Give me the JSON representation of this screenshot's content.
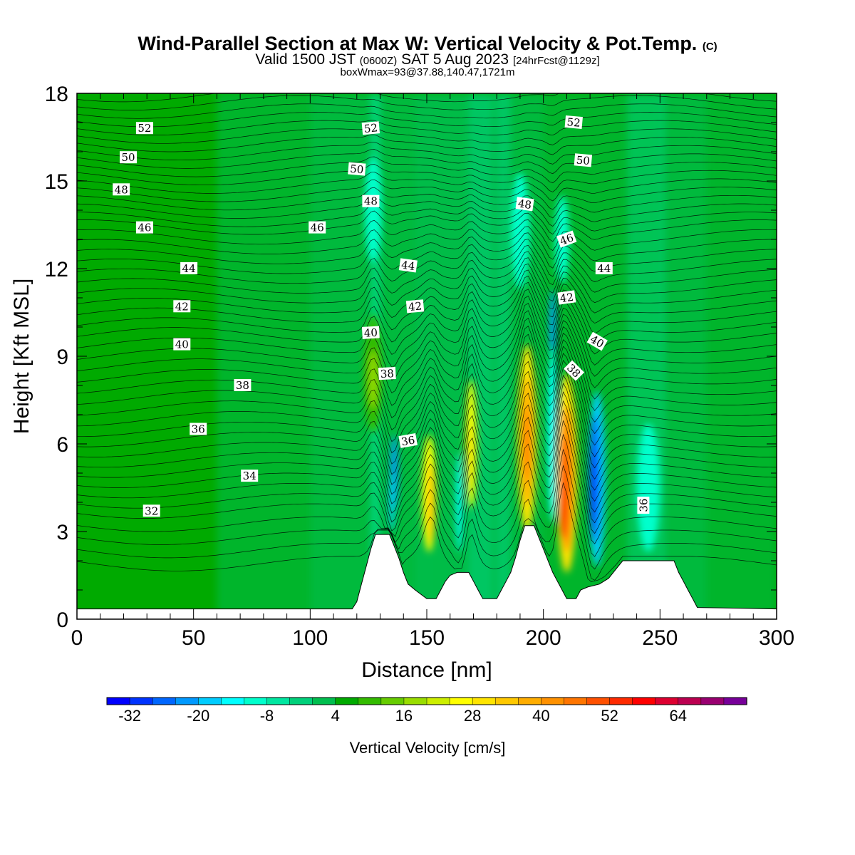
{
  "chart_data": {
    "type": "heatmap",
    "title": "Wind-Parallel Section at Max W: Vertical Velocity & Pot.Temp.",
    "title_mark": "(C)",
    "subtitle_parts": [
      "Valid 1500 JST",
      "(0600Z)",
      "SAT 5 Aug 2023",
      "[24hrFcst@1129z]"
    ],
    "subtitle2": "boxWmax=93@37.88,140.47,1721m",
    "xlabel": "Distance [nm]",
    "ylabel": "Height [Kft MSL]",
    "xlim": [
      0,
      300
    ],
    "ylim": [
      0,
      18
    ],
    "x_ticks": [
      0,
      50,
      100,
      150,
      200,
      250,
      300
    ],
    "y_ticks": [
      0,
      3,
      6,
      9,
      12,
      15,
      18
    ],
    "colorbar": {
      "label": "Vertical Velocity [cm/s]",
      "ticks": [
        -32,
        -20,
        -8,
        4,
        16,
        28,
        40,
        52,
        64
      ],
      "min": -36,
      "step": 4,
      "colors": [
        "#0000ff",
        "#0033ff",
        "#0066ff",
        "#0099ff",
        "#00ccff",
        "#00ffff",
        "#00ffcc",
        "#00e6a0",
        "#00d07a",
        "#00be4e",
        "#00aa00",
        "#33bb00",
        "#66cc00",
        "#99dd00",
        "#ccee00",
        "#ffff00",
        "#ffe400",
        "#ffc800",
        "#ffad00",
        "#ff9100",
        "#ff7500",
        "#ff5000",
        "#ff2a00",
        "#ff0000",
        "#dd0030",
        "#bb0050",
        "#990070",
        "#770099"
      ]
    },
    "terrain": [
      [
        0,
        0.35
      ],
      [
        118,
        0.35
      ],
      [
        120,
        0.6
      ],
      [
        122,
        1.2
      ],
      [
        124,
        1.8
      ],
      [
        126,
        2.4
      ],
      [
        128,
        2.9
      ],
      [
        134,
        2.9
      ],
      [
        136,
        2.5
      ],
      [
        138,
        2.1
      ],
      [
        140,
        1.6
      ],
      [
        142,
        1.2
      ],
      [
        145,
        1.0
      ],
      [
        150,
        0.7
      ],
      [
        154,
        0.7
      ],
      [
        156,
        1.0
      ],
      [
        158,
        1.3
      ],
      [
        160,
        1.5
      ],
      [
        163,
        1.6
      ],
      [
        168,
        1.6
      ],
      [
        170,
        1.3
      ],
      [
        172,
        1.0
      ],
      [
        174,
        0.7
      ],
      [
        180,
        0.7
      ],
      [
        182,
        1.0
      ],
      [
        184,
        1.3
      ],
      [
        186,
        1.6
      ],
      [
        188,
        2.1
      ],
      [
        190,
        2.7
      ],
      [
        192,
        3.2
      ],
      [
        196,
        3.2
      ],
      [
        198,
        2.8
      ],
      [
        200,
        2.4
      ],
      [
        202,
        2.0
      ],
      [
        204,
        1.6
      ],
      [
        206,
        1.3
      ],
      [
        208,
        1.0
      ],
      [
        210,
        0.7
      ],
      [
        214,
        0.7
      ],
      [
        216,
        1.0
      ],
      [
        219,
        1.1
      ],
      [
        224,
        1.2
      ],
      [
        228,
        1.4
      ],
      [
        231,
        1.7
      ],
      [
        234,
        2.0
      ],
      [
        256,
        2.0
      ],
      [
        258,
        1.6
      ],
      [
        260,
        1.3
      ],
      [
        262,
        1.0
      ],
      [
        264,
        0.7
      ],
      [
        266,
        0.4
      ],
      [
        300,
        0.35
      ]
    ],
    "theta_labels": [
      {
        "value": "52",
        "x": 29,
        "y": 16.8,
        "angle": 0
      },
      {
        "value": "50",
        "x": 22,
        "y": 15.8,
        "angle": 0
      },
      {
        "value": "48",
        "x": 19,
        "y": 14.7,
        "angle": 0
      },
      {
        "value": "46",
        "x": 29,
        "y": 13.4,
        "angle": 0
      },
      {
        "value": "44",
        "x": 48,
        "y": 12.0,
        "angle": 0
      },
      {
        "value": "42",
        "x": 45,
        "y": 10.7,
        "angle": 0
      },
      {
        "value": "40",
        "x": 45,
        "y": 9.4,
        "angle": 0
      },
      {
        "value": "38",
        "x": 71,
        "y": 8.0,
        "angle": 0
      },
      {
        "value": "36",
        "x": 52,
        "y": 6.5,
        "angle": 0
      },
      {
        "value": "34",
        "x": 74,
        "y": 4.9,
        "angle": 0
      },
      {
        "value": "32",
        "x": 32,
        "y": 3.7,
        "angle": 0
      },
      {
        "value": "52",
        "x": 126,
        "y": 16.8,
        "angle": -5
      },
      {
        "value": "50",
        "x": 120,
        "y": 15.4,
        "angle": 5
      },
      {
        "value": "48",
        "x": 126,
        "y": 14.3,
        "angle": 0
      },
      {
        "value": "46",
        "x": 103,
        "y": 13.4,
        "angle": 0
      },
      {
        "value": "44",
        "x": 142,
        "y": 12.1,
        "angle": 8
      },
      {
        "value": "42",
        "x": 145,
        "y": 10.7,
        "angle": -5
      },
      {
        "value": "40",
        "x": 126,
        "y": 9.8,
        "angle": -3
      },
      {
        "value": "38",
        "x": 133,
        "y": 8.4,
        "angle": -3
      },
      {
        "value": "36",
        "x": 142,
        "y": 6.1,
        "angle": -10
      },
      {
        "value": "52",
        "x": 213,
        "y": 17.0,
        "angle": 5
      },
      {
        "value": "50",
        "x": 217,
        "y": 15.7,
        "angle": 5
      },
      {
        "value": "48",
        "x": 192,
        "y": 14.2,
        "angle": 8
      },
      {
        "value": "46",
        "x": 210,
        "y": 13.0,
        "angle": -20
      },
      {
        "value": "44",
        "x": 226,
        "y": 12.0,
        "angle": 0
      },
      {
        "value": "42",
        "x": 210,
        "y": 11.0,
        "angle": -8
      },
      {
        "value": "40",
        "x": 223,
        "y": 9.5,
        "angle": 30
      },
      {
        "value": "38",
        "x": 213,
        "y": 8.5,
        "angle": 45
      },
      {
        "value": "36",
        "x": 243,
        "y": 3.9,
        "angle": -90
      }
    ],
    "w_cells": [
      {
        "x": 136,
        "y": 5.0,
        "rx": 1.6,
        "ry": 1.3,
        "w": -22
      },
      {
        "x": 135,
        "y": 4.0,
        "rx": 1.2,
        "ry": 1.0,
        "w": -18
      },
      {
        "x": 151,
        "y": 4.3,
        "rx": 3.0,
        "ry": 2.0,
        "w": 26
      },
      {
        "x": 152,
        "y": 4.0,
        "rx": 1.6,
        "ry": 1.4,
        "w": 32
      },
      {
        "x": 164,
        "y": 4.0,
        "rx": 1.3,
        "ry": 1.7,
        "w": -16
      },
      {
        "x": 169,
        "y": 6.0,
        "rx": 2.4,
        "ry": 2.2,
        "w": 24
      },
      {
        "x": 169,
        "y": 5.5,
        "rx": 1.2,
        "ry": 1.2,
        "w": 30
      },
      {
        "x": 193,
        "y": 6.2,
        "rx": 4.0,
        "ry": 3.2,
        "w": 28
      },
      {
        "x": 193,
        "y": 6.1,
        "rx": 2.5,
        "ry": 2.2,
        "w": 36
      },
      {
        "x": 193,
        "y": 6.0,
        "rx": 1.3,
        "ry": 1.3,
        "w": 44
      },
      {
        "x": 204,
        "y": 10.0,
        "rx": 1.4,
        "ry": 1.3,
        "w": -24
      },
      {
        "x": 204,
        "y": 6.3,
        "rx": 2.2,
        "ry": 3.0,
        "w": -14
      },
      {
        "x": 210,
        "y": 5.0,
        "rx": 4.5,
        "ry": 3.4,
        "w": 30
      },
      {
        "x": 210,
        "y": 4.8,
        "rx": 3.0,
        "ry": 2.5,
        "w": 40
      },
      {
        "x": 209,
        "y": 4.5,
        "rx": 1.8,
        "ry": 1.8,
        "w": 50
      },
      {
        "x": 208,
        "y": 3.8,
        "rx": 1.0,
        "ry": 1.0,
        "w": 56
      },
      {
        "x": 223,
        "y": 4.8,
        "rx": 3.5,
        "ry": 3.0,
        "w": -18
      },
      {
        "x": 222,
        "y": 4.8,
        "rx": 2.2,
        "ry": 2.2,
        "w": -26
      },
      {
        "x": 221,
        "y": 4.5,
        "rx": 1.2,
        "ry": 1.4,
        "w": -32
      },
      {
        "x": 127,
        "y": 8.4,
        "rx": 4.0,
        "ry": 2.0,
        "w": 10
      },
      {
        "x": 127,
        "y": 8.2,
        "rx": 1.6,
        "ry": 1.0,
        "w": 16
      },
      {
        "x": 127,
        "y": 14.0,
        "rx": 3.5,
        "ry": 1.8,
        "w": -10
      },
      {
        "x": 190,
        "y": 13.3,
        "rx": 4.0,
        "ry": 2.0,
        "w": -10
      },
      {
        "x": 208,
        "y": 13.0,
        "rx": 3.0,
        "ry": 1.5,
        "w": -10
      },
      {
        "x": 245,
        "y": 4.5,
        "rx": 5.0,
        "ry": 2.2,
        "w": -10
      }
    ]
  }
}
